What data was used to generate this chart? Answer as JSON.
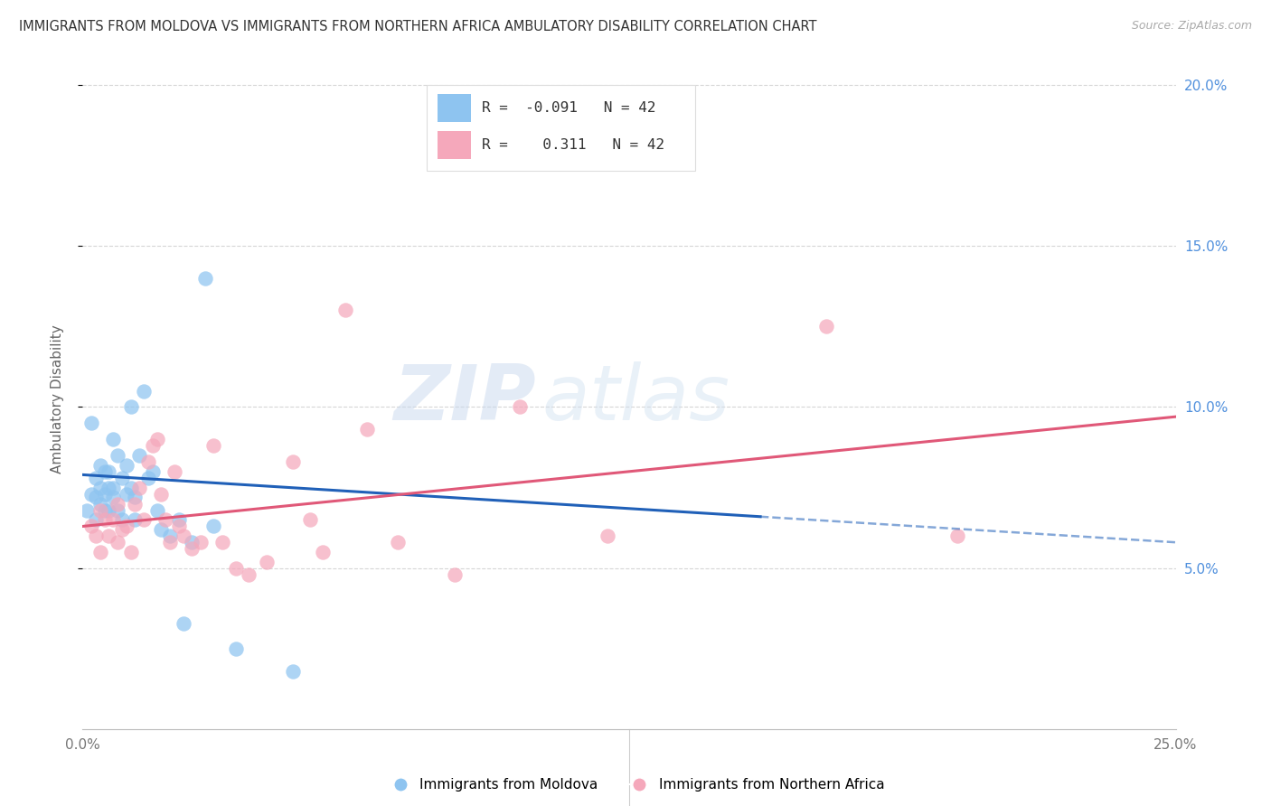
{
  "title": "IMMIGRANTS FROM MOLDOVA VS IMMIGRANTS FROM NORTHERN AFRICA AMBULATORY DISABILITY CORRELATION CHART",
  "source": "Source: ZipAtlas.com",
  "ylabel": "Ambulatory Disability",
  "xlim": [
    0.0,
    0.25
  ],
  "ylim": [
    0.0,
    0.205
  ],
  "yticks": [
    0.05,
    0.1,
    0.15,
    0.2
  ],
  "ytick_labels": [
    "5.0%",
    "10.0%",
    "15.0%",
    "20.0%"
  ],
  "xticks": [
    0.0,
    0.05,
    0.1,
    0.15,
    0.2,
    0.25
  ],
  "xtick_labels": [
    "0.0%",
    "",
    "",
    "",
    "",
    "25.0%"
  ],
  "legend_labels": [
    "Immigrants from Moldova",
    "Immigrants from Northern Africa"
  ],
  "R_moldova": -0.091,
  "N_moldova": 42,
  "R_north_africa": 0.311,
  "N_north_africa": 42,
  "color_moldova": "#8EC4F0",
  "color_north_africa": "#F5A8BB",
  "line_color_moldova": "#2060B8",
  "line_color_north_africa": "#E05878",
  "watermark_zip": "ZIP",
  "watermark_atlas": "atlas",
  "background_color": "#FFFFFF",
  "moldova_x": [
    0.001,
    0.002,
    0.002,
    0.003,
    0.003,
    0.003,
    0.004,
    0.004,
    0.004,
    0.005,
    0.005,
    0.005,
    0.006,
    0.006,
    0.006,
    0.007,
    0.007,
    0.007,
    0.008,
    0.008,
    0.009,
    0.009,
    0.01,
    0.01,
    0.011,
    0.011,
    0.012,
    0.012,
    0.013,
    0.014,
    0.015,
    0.016,
    0.017,
    0.018,
    0.02,
    0.022,
    0.023,
    0.025,
    0.028,
    0.03,
    0.035,
    0.048
  ],
  "moldova_y": [
    0.068,
    0.095,
    0.073,
    0.065,
    0.072,
    0.078,
    0.07,
    0.075,
    0.082,
    0.068,
    0.08,
    0.073,
    0.075,
    0.068,
    0.08,
    0.072,
    0.09,
    0.075,
    0.068,
    0.085,
    0.078,
    0.065,
    0.082,
    0.073,
    0.075,
    0.1,
    0.065,
    0.072,
    0.085,
    0.105,
    0.078,
    0.08,
    0.068,
    0.062,
    0.06,
    0.065,
    0.033,
    0.058,
    0.14,
    0.063,
    0.025,
    0.018
  ],
  "north_africa_x": [
    0.002,
    0.003,
    0.004,
    0.004,
    0.005,
    0.006,
    0.007,
    0.008,
    0.008,
    0.009,
    0.01,
    0.011,
    0.012,
    0.013,
    0.014,
    0.015,
    0.016,
    0.017,
    0.018,
    0.019,
    0.02,
    0.021,
    0.022,
    0.023,
    0.025,
    0.027,
    0.03,
    0.032,
    0.035,
    0.038,
    0.042,
    0.048,
    0.052,
    0.055,
    0.06,
    0.065,
    0.072,
    0.085,
    0.1,
    0.12,
    0.17,
    0.2
  ],
  "north_africa_y": [
    0.063,
    0.06,
    0.068,
    0.055,
    0.065,
    0.06,
    0.065,
    0.07,
    0.058,
    0.062,
    0.063,
    0.055,
    0.07,
    0.075,
    0.065,
    0.083,
    0.088,
    0.09,
    0.073,
    0.065,
    0.058,
    0.08,
    0.063,
    0.06,
    0.056,
    0.058,
    0.088,
    0.058,
    0.05,
    0.048,
    0.052,
    0.083,
    0.065,
    0.055,
    0.13,
    0.093,
    0.058,
    0.048,
    0.1,
    0.06,
    0.125,
    0.06
  ],
  "line_moldova_x0": 0.0,
  "line_moldova_x1": 0.155,
  "line_moldova_y0": 0.079,
  "line_moldova_y1": 0.066,
  "line_dash_x0": 0.155,
  "line_dash_x1": 0.25,
  "line_na_x0": 0.0,
  "line_na_x1": 0.25,
  "line_na_y0": 0.063,
  "line_na_y1": 0.097
}
